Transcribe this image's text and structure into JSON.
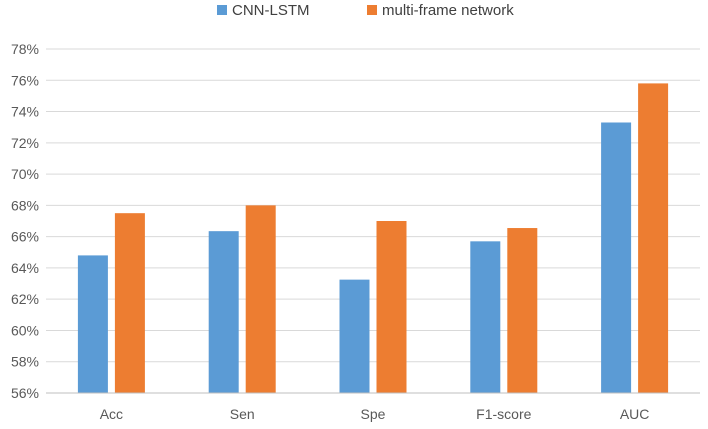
{
  "chart_data": {
    "type": "bar",
    "categories": [
      "Acc",
      "Sen",
      "Spe",
      "F1-score",
      "AUC"
    ],
    "series": [
      {
        "name": "CNN-LSTM",
        "color": "#5B9BD5",
        "values": [
          64.8,
          66.35,
          63.25,
          65.7,
          73.3
        ]
      },
      {
        "name": "multi-frame network",
        "color": "#ED7D31",
        "values": [
          67.5,
          68.0,
          67.0,
          66.55,
          75.8
        ]
      }
    ],
    "y_ticks": [
      "56%",
      "58%",
      "60%",
      "62%",
      "64%",
      "66%",
      "68%",
      "70%",
      "72%",
      "74%",
      "76%",
      "78%"
    ],
    "ylim": [
      56,
      78
    ],
    "y_unit": "%",
    "legend_position": "top-center",
    "grid": true,
    "gridline_color": "#D9D9D9",
    "title": "",
    "xlabel": "",
    "ylabel": ""
  }
}
